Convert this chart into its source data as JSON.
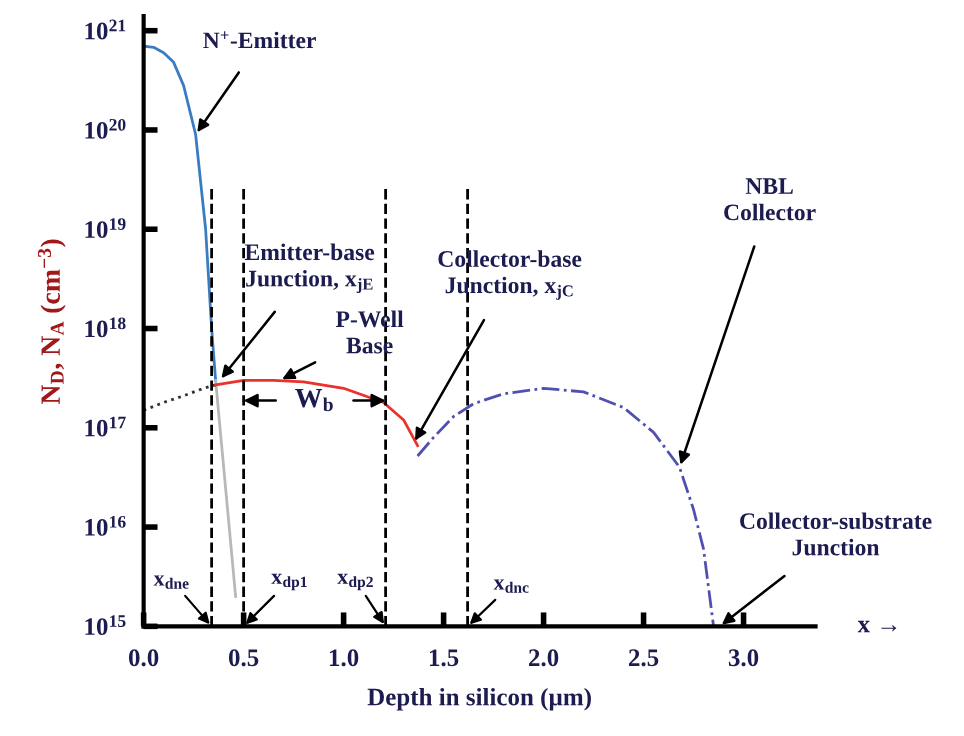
{
  "chart_data": {
    "type": "line",
    "xlabel": "Depth in silicon (µm)",
    "ylabel": "N$_{D}$, N$_{A}$ (cm$^{−3}$)",
    "log": "y",
    "xlim": [
      0,
      3.36
    ],
    "ylim": [
      1000000000000000.0,
      1.4e+21
    ],
    "xticks": [
      {
        "value": 0,
        "label": "0.0"
      },
      {
        "value": 0.5,
        "label": "0.5"
      },
      {
        "value": 1.0,
        "label": "1.0"
      },
      {
        "value": 1.5,
        "label": "1.5"
      },
      {
        "value": 2.0,
        "label": "2.0"
      },
      {
        "value": 2.5,
        "label": "2.5"
      },
      {
        "value": 3.0,
        "label": "3.0"
      }
    ],
    "yticks": [
      {
        "value": 1000000000000000.0,
        "label": "10$^{15}$"
      },
      {
        "value": 1e+16,
        "label": "10$^{16}$"
      },
      {
        "value": 1e+17,
        "label": "10$^{17}$"
      },
      {
        "value": 1e+18,
        "label": "10$^{18}$"
      },
      {
        "value": 1e+19,
        "label": "10$^{19}$"
      },
      {
        "value": 1e+20,
        "label": "10$^{20}$"
      },
      {
        "value": 1e+21,
        "label": "10$^{21}$"
      }
    ],
    "grid": false,
    "series": [
      {
        "color": "#3a7cc2",
        "line_style": "solid",
        "x": [
          0,
          0.05,
          0.1,
          0.15,
          0.2,
          0.26,
          0.31,
          0.34,
          0.36
        ],
        "values": [
          7e+20,
          6.8e+20,
          6e+20,
          4.8e+20,
          2.8e+20,
          9e+19,
          1e+19,
          1e+18,
          3e+17
        ]
      },
      {
        "color": "#b8b8b8",
        "line_style": "solid",
        "x": [
          0.36,
          0.46
        ],
        "values": [
          3e+17,
          2000000000000000.0
        ]
      },
      {
        "color": "#333333",
        "line_style": "dotted",
        "x": [
          0,
          0.1,
          0.2,
          0.3,
          0.36
        ],
        "values": [
          1.5e+17,
          1.8e+17,
          2.1e+17,
          2.5e+17,
          2.7e+17
        ]
      },
      {
        "color": "#e8322b",
        "line_style": "solid",
        "x": [
          0.36,
          0.5,
          0.65,
          0.8,
          1.0,
          1.2,
          1.3,
          1.37
        ],
        "values": [
          2.7e+17,
          3e+17,
          3e+17,
          2.9e+17,
          2.5e+17,
          1.8e+17,
          1.2e+17,
          6.6e+16
        ]
      },
      {
        "color": "#5050b0",
        "line_style": "dashdot",
        "x": [
          1.37,
          1.45,
          1.55,
          1.65,
          1.8,
          2.0,
          2.2,
          2.4,
          2.55,
          2.68,
          2.75,
          2.8,
          2.85
        ],
        "values": [
          5.2e+16,
          8e+16,
          1.3e+17,
          1.75e+17,
          2.2e+17,
          2.5e+17,
          2.3e+17,
          1.6e+17,
          9e+16,
          4e+16,
          1.5e+16,
          6000000000000000.0,
          1000000000000000.0
        ]
      }
    ],
    "ref_lines": [
      {
        "axis": "x",
        "value": 0.34,
        "label": "x$_{dne}$",
        "line_style": "dashed",
        "color": "#000000"
      },
      {
        "axis": "x",
        "value": 0.5,
        "label": "x$_{dp1}$",
        "line_style": "dashed",
        "color": "#000000"
      },
      {
        "axis": "x",
        "value": 1.21,
        "label": "x$_{dp2}$",
        "line_style": "dashed",
        "color": "#000000"
      },
      {
        "axis": "x",
        "value": 1.62,
        "label": "x$_{dnc}$",
        "line_style": "dashed",
        "color": "#000000"
      }
    ],
    "annotations": [
      {
        "text": "N$^{+}$-Emitter",
        "x": 0.26,
        "y": 9e+19
      },
      {
        "text": "Emitter-base\nJunction, x$_{jE}$",
        "x": 0.38,
        "y": 3e+17
      },
      {
        "text": "P-Well\nBase",
        "x": 0.68,
        "y": 3e+17
      },
      {
        "text": "Collector-base\nJunction, x$_{jC}$",
        "x": 1.35,
        "y": 7e+16
      },
      {
        "text": "NBL\nCollector",
        "x": 2.68,
        "y": 4e+16
      },
      {
        "text": "Collector-substrate\nJunction",
        "x": 2.88,
        "y": 1000000000000000.0
      },
      "W$_{b}$",
      "x →"
    ]
  }
}
